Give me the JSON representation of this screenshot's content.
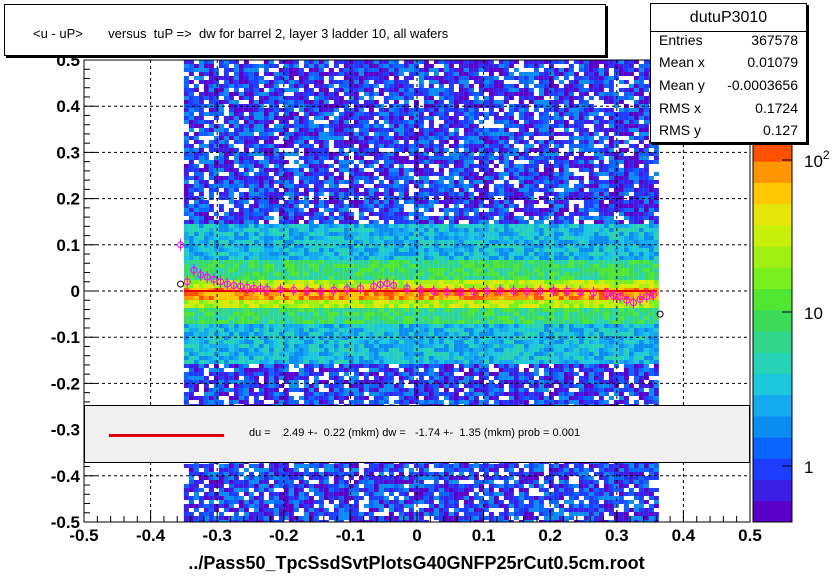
{
  "title": "<u - uP>       versus  tuP =>  dw for barrel 2, layer 3 ladder 10, all wafers",
  "stats": {
    "name": "dutuP3010",
    "rows": [
      {
        "label": "Entries",
        "value": "367578"
      },
      {
        "label": "Mean x",
        "value": "0.01079"
      },
      {
        "label": "Mean y",
        "value": "-0.0003656"
      },
      {
        "label": "RMS x",
        "value": "0.1724"
      },
      {
        "label": "RMS y",
        "value": "0.127"
      }
    ]
  },
  "fit_text": "du =    2.49 +-  0.22 (mkm) dw =   -1.74 +-  1.35 (mkm) prob = 0.001",
  "xlabel": "../Pass50_TpcSsdSvtPlotsG40GNFP25rCut0.5cm.root",
  "chart_data": {
    "type": "heatmap",
    "title": "<u - uP>       versus  tuP =>  dw for barrel 2, layer 3 ladder 10, all wafers",
    "xlabel": "../Pass50_TpcSsdSvtPlotsG40GNFP25rCut0.5cm.root",
    "ylabel": "",
    "xlim": [
      -0.5,
      0.5
    ],
    "ylim": [
      -0.5,
      0.5
    ],
    "x_ticks": [
      "-0.5",
      "-0.4",
      "-0.3",
      "-0.2",
      "-0.1",
      "0",
      "0.1",
      "0.2",
      "0.3",
      "0.4",
      "0.5"
    ],
    "y_ticks": [
      "-0.5",
      "-0.4",
      "-0.3",
      "-0.2",
      "-0.1",
      "0",
      "0.1",
      "0.2",
      "0.3",
      "0.4",
      "0.5"
    ],
    "grid": true,
    "z_scale": "log",
    "z_ticks": [
      "1",
      "10",
      "10^2"
    ],
    "data_x_range": [
      -0.35,
      0.36
    ],
    "core_width_y": 0.012,
    "profile_points": [
      {
        "x": -0.355,
        "y": 0.1
      },
      {
        "x": -0.345,
        "y": 0.02
      },
      {
        "x": -0.335,
        "y": 0.045
      },
      {
        "x": -0.325,
        "y": 0.035
      },
      {
        "x": -0.315,
        "y": 0.03
      },
      {
        "x": -0.305,
        "y": 0.025
      },
      {
        "x": -0.295,
        "y": 0.02
      },
      {
        "x": -0.285,
        "y": 0.015
      },
      {
        "x": -0.275,
        "y": 0.012
      },
      {
        "x": -0.265,
        "y": 0.01
      },
      {
        "x": -0.255,
        "y": 0.008
      },
      {
        "x": -0.245,
        "y": 0.006
      },
      {
        "x": -0.235,
        "y": 0.005
      },
      {
        "x": -0.225,
        "y": 0.004
      },
      {
        "x": -0.205,
        "y": 0.003
      },
      {
        "x": -0.185,
        "y": 0.002
      },
      {
        "x": -0.165,
        "y": 0.001
      },
      {
        "x": -0.145,
        "y": 0.0
      },
      {
        "x": -0.125,
        "y": 0.002
      },
      {
        "x": -0.105,
        "y": 0.004
      },
      {
        "x": -0.085,
        "y": 0.006
      },
      {
        "x": -0.065,
        "y": 0.01
      },
      {
        "x": -0.055,
        "y": 0.014
      },
      {
        "x": -0.045,
        "y": 0.016
      },
      {
        "x": -0.035,
        "y": 0.012
      },
      {
        "x": -0.015,
        "y": 0.006
      },
      {
        "x": 0.005,
        "y": 0.003
      },
      {
        "x": 0.025,
        "y": 0.0
      },
      {
        "x": 0.045,
        "y": -0.002
      },
      {
        "x": 0.065,
        "y": -0.003
      },
      {
        "x": 0.085,
        "y": -0.002
      },
      {
        "x": 0.105,
        "y": 0.0
      },
      {
        "x": 0.125,
        "y": 0.001
      },
      {
        "x": 0.145,
        "y": 0.0
      },
      {
        "x": 0.165,
        "y": -0.001
      },
      {
        "x": 0.185,
        "y": 0.0
      },
      {
        "x": 0.205,
        "y": 0.001
      },
      {
        "x": 0.225,
        "y": 0.0
      },
      {
        "x": 0.245,
        "y": -0.002
      },
      {
        "x": 0.265,
        "y": -0.004
      },
      {
        "x": 0.285,
        "y": -0.006
      },
      {
        "x": 0.295,
        "y": -0.01
      },
      {
        "x": 0.305,
        "y": -0.012
      },
      {
        "x": 0.315,
        "y": -0.02
      },
      {
        "x": 0.325,
        "y": -0.025
      },
      {
        "x": 0.335,
        "y": -0.018
      },
      {
        "x": 0.345,
        "y": -0.012
      },
      {
        "x": 0.355,
        "y": -0.008
      }
    ],
    "black_points": [
      {
        "x": -0.355,
        "y": 0.015
      },
      {
        "x": 0.365,
        "y": -0.05
      }
    ],
    "fit_line": {
      "x": [
        -0.35,
        0.36
      ],
      "y": [
        0.0,
        0.0
      ],
      "color": "#e00000"
    },
    "colors": {
      "profile": "#ff00ff",
      "fit": "#e00000",
      "frame": "#000000"
    }
  }
}
